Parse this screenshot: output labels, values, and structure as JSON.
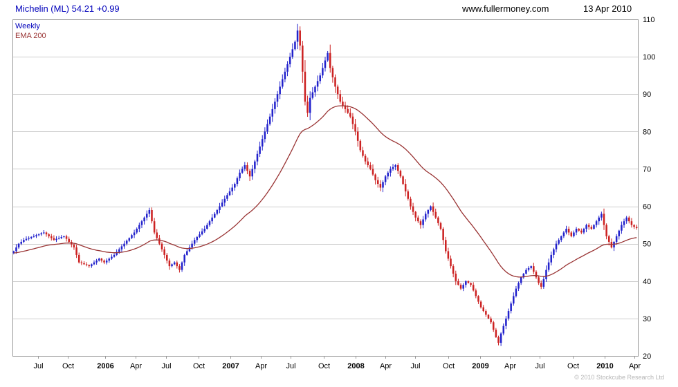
{
  "header": {
    "title": "Michelin (ML) 54.21 +0.99",
    "website": "www.fullermoney.com",
    "date": "13 Apr 2010"
  },
  "footer": {
    "copyright": "© 2010 Stockcube Research Ltd"
  },
  "colors": {
    "title_text": "#0000bb",
    "header_text": "#000000",
    "up_candle": "#2222cc",
    "down_candle": "#cc2222",
    "ema_line": "#993333",
    "grid_line": "#cccccc",
    "plot_border": "#999999",
    "axis_text": "#000000",
    "copyright_text": "#b5b5b5"
  },
  "chart_data": {
    "type": "candlestick",
    "title": "Michelin (ML)",
    "last_price": 54.21,
    "change": "+0.99",
    "timeframe": "Weekly",
    "overlay": "EMA 200",
    "legend_position": "top-left",
    "grid": "horizontal-only",
    "ylim": [
      20,
      110
    ],
    "y_ticks": [
      20,
      30,
      40,
      50,
      60,
      70,
      80,
      90,
      100,
      110
    ],
    "y_axis_side": "right",
    "x_labels": [
      {
        "text": "Jul",
        "pos": 0.041
      },
      {
        "text": "Oct",
        "pos": 0.089
      },
      {
        "text": "2006",
        "pos": 0.148,
        "bold": true
      },
      {
        "text": "Apr",
        "pos": 0.197
      },
      {
        "text": "Jul",
        "pos": 0.246
      },
      {
        "text": "Oct",
        "pos": 0.298
      },
      {
        "text": "2007",
        "pos": 0.348,
        "bold": true
      },
      {
        "text": "Apr",
        "pos": 0.397
      },
      {
        "text": "Jul",
        "pos": 0.445
      },
      {
        "text": "Oct",
        "pos": 0.498
      },
      {
        "text": "2008",
        "pos": 0.549,
        "bold": true
      },
      {
        "text": "Apr",
        "pos": 0.596
      },
      {
        "text": "Jul",
        "pos": 0.644
      },
      {
        "text": "Oct",
        "pos": 0.697
      },
      {
        "text": "2009",
        "pos": 0.748,
        "bold": true
      },
      {
        "text": "Apr",
        "pos": 0.795
      },
      {
        "text": "Jul",
        "pos": 0.843
      },
      {
        "text": "Oct",
        "pos": 0.896
      },
      {
        "text": "2010",
        "pos": 0.947,
        "bold": true
      },
      {
        "text": "Apr",
        "pos": 0.994
      }
    ],
    "series": [
      {
        "name": "Weekly",
        "type": "candlestick"
      },
      {
        "name": "EMA 200",
        "type": "line"
      }
    ],
    "first_open": 47.5,
    "weekly_closes": [
      48,
      49,
      50,
      50.5,
      51,
      51.3,
      51.5,
      51.8,
      52,
      52.3,
      52.5,
      52.8,
      53,
      52.5,
      52,
      51.5,
      51,
      51.3,
      51.5,
      51.8,
      52,
      51.3,
      50.5,
      49.8,
      49,
      47,
      45,
      44.8,
      44.5,
      44.3,
      44,
      44.5,
      45,
      45.5,
      46,
      45.5,
      45,
      45.5,
      46,
      46.5,
      47,
      47.8,
      48.5,
      49.3,
      50,
      50.8,
      51.5,
      52.3,
      53,
      54,
      55,
      56,
      57,
      58,
      59,
      56,
      53,
      51.5,
      50,
      48.5,
      47,
      45.5,
      44,
      44.5,
      45,
      44,
      43,
      45,
      47,
      48,
      49,
      50,
      51,
      51.8,
      52.5,
      53.3,
      54,
      55,
      56,
      57,
      58,
      59,
      60,
      61,
      62,
      63,
      64,
      65,
      66,
      67.5,
      69,
      70,
      71,
      69.5,
      68,
      70,
      72,
      74,
      76,
      78,
      80,
      82,
      84,
      86,
      88,
      90,
      92,
      94,
      96,
      98,
      100,
      102,
      104,
      107,
      103,
      96,
      88,
      85,
      89,
      90.5,
      92,
      93.5,
      95,
      97,
      99,
      101,
      97,
      94.5,
      92,
      90,
      88,
      87,
      86,
      85,
      84,
      82,
      80,
      77.5,
      75,
      73.5,
      72,
      71,
      70,
      68.5,
      67,
      66,
      65,
      66.5,
      68,
      69,
      70,
      70.5,
      71,
      69.5,
      68,
      66,
      64,
      62,
      60,
      58.5,
      57,
      56,
      55,
      56.5,
      58,
      59,
      60,
      58.5,
      57,
      55.5,
      54,
      51,
      48,
      46,
      44,
      42,
      40,
      39,
      38,
      39,
      40,
      39.5,
      39,
      37.5,
      36,
      34.5,
      33,
      32,
      31,
      30,
      29,
      27,
      25,
      23.5,
      26,
      28,
      30,
      32,
      34,
      36,
      38,
      39.5,
      41,
      42,
      43,
      43.5,
      44,
      42.5,
      41,
      39.5,
      38.5,
      40.5,
      43,
      45,
      47,
      48.5,
      50,
      51,
      52,
      53,
      54,
      53,
      52,
      53,
      54,
      53.5,
      53,
      54,
      55,
      54.5,
      54,
      55,
      56,
      57,
      58,
      55,
      52,
      50.5,
      49,
      50.5,
      52,
      53.5,
      55,
      56,
      57,
      56,
      55,
      54.5,
      54.2
    ],
    "ema": {
      "alpha": 0.048,
      "seed": 47.5
    },
    "wick": {
      "base": 0.012,
      "body": 0.3
    }
  }
}
